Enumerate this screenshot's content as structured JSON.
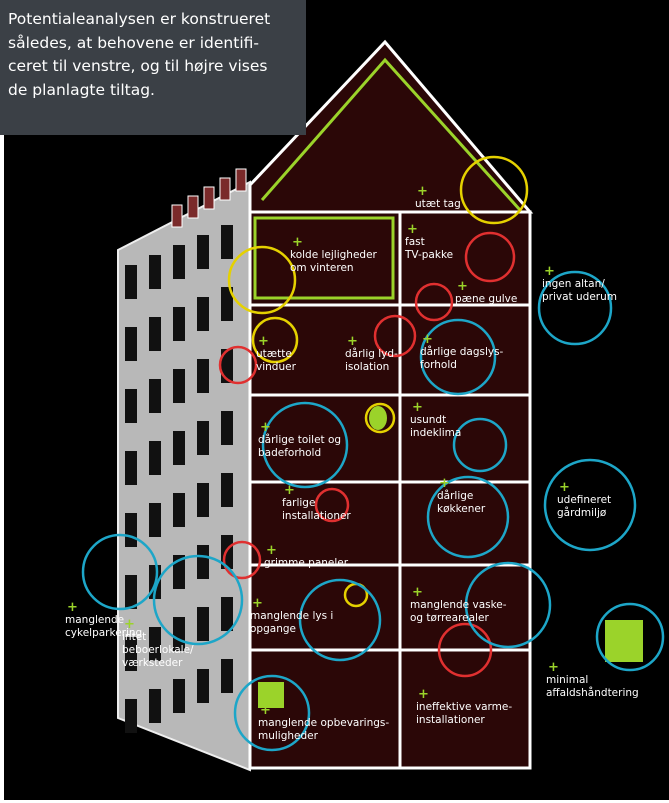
{
  "caption": {
    "lines": [
      "Potentialeanalysen er konstrueret",
      "således, at behovene er identifi-",
      "ceret til venstre, og til højre vises",
      "de planlagte tiltag."
    ]
  },
  "labels": [
    {
      "lines": [
        "utæt tag"
      ]
    },
    {
      "lines": [
        "kolde lejligheder",
        "om vinteren"
      ]
    },
    {
      "lines": [
        "fast",
        "TV-pakke"
      ]
    },
    {
      "lines": [
        "ingen altan/",
        "privat uderum"
      ]
    },
    {
      "lines": [
        "pæne gulve"
      ]
    },
    {
      "lines": [
        "utætte",
        "vinduer"
      ]
    },
    {
      "lines": [
        "dårlig lyd-",
        "isolation"
      ]
    },
    {
      "lines": [
        "dårlige dagslys-",
        "forhold"
      ]
    },
    {
      "lines": [
        "dårlige toilet og",
        "badeforhold"
      ]
    },
    {
      "lines": [
        "usundt",
        "indeklima"
      ]
    },
    {
      "lines": [
        "farlige",
        "installationer"
      ]
    },
    {
      "lines": [
        "dårlige",
        "køkkener"
      ]
    },
    {
      "lines": [
        "udefineret",
        "gårdmiljø"
      ]
    },
    {
      "lines": [
        "grimme paneler"
      ]
    },
    {
      "lines": [
        "manglende lys i",
        "opgange"
      ]
    },
    {
      "lines": [
        "manglende vaske-",
        "og tørrearealer"
      ]
    },
    {
      "lines": [
        "manglende",
        "cykelparkering"
      ]
    },
    {
      "lines": [
        "intet",
        "beboerlokale/",
        "værksteder"
      ]
    },
    {
      "lines": [
        "minimal",
        "affaldshåndtering"
      ]
    },
    {
      "lines": [
        "manglende opbevarings-",
        "muligheder"
      ]
    },
    {
      "lines": [
        "ineffektive varme-",
        "installationer"
      ]
    }
  ]
}
